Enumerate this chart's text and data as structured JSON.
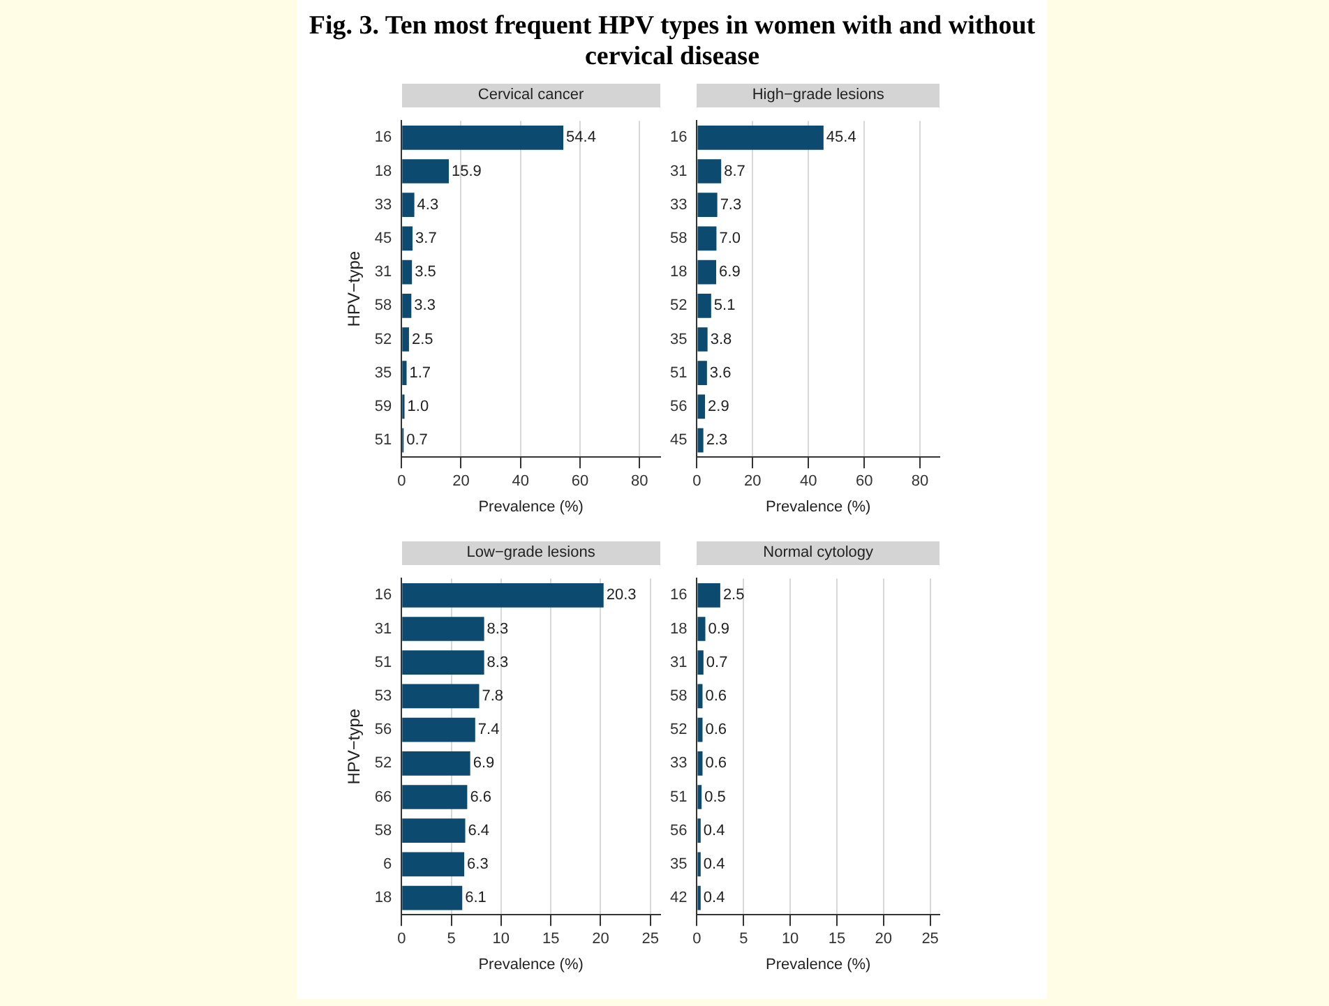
{
  "chart_data": [
    {
      "type": "bar",
      "orientation": "horizontal",
      "title": "Cervical cancer",
      "ylabel": "HPV−type",
      "xlabel": "Prevalence (%)",
      "annotations": [
        "Fig. 3. Ten most frequent HPV types in women with and without cervical disease"
      ],
      "categories": [
        "16",
        "18",
        "33",
        "45",
        "31",
        "58",
        "52",
        "35",
        "59",
        "51"
      ],
      "values": [
        54.4,
        15.9,
        4.3,
        3.7,
        3.5,
        3.3,
        2.5,
        1.7,
        1.0,
        0.7
      ],
      "value_labels": [
        "54.4",
        "15.9",
        "4.3",
        "3.7",
        "3.5",
        "3.3",
        "2.5",
        "1.7",
        "1.0",
        "0.7"
      ],
      "color": "#0d4a70",
      "xlim": [
        0,
        87
      ],
      "xticks": [
        0,
        20,
        40,
        60,
        80
      ],
      "grid": "x",
      "legend": false
    },
    {
      "type": "bar",
      "orientation": "horizontal",
      "title": "High−grade lesions",
      "xlabel": "Prevalence (%)",
      "categories": [
        "16",
        "31",
        "33",
        "58",
        "18",
        "52",
        "35",
        "51",
        "56",
        "45"
      ],
      "values": [
        45.4,
        8.7,
        7.3,
        7.0,
        6.9,
        5.1,
        3.8,
        3.6,
        2.9,
        2.3
      ],
      "value_labels": [
        "45.4",
        "8.7",
        "7.3",
        "7.0",
        "6.9",
        "5.1",
        "3.8",
        "3.6",
        "2.9",
        "2.3"
      ],
      "color": "#0d4a70",
      "xlim": [
        0,
        87
      ],
      "xticks": [
        0,
        20,
        40,
        60,
        80
      ],
      "grid": "x",
      "legend": false
    },
    {
      "type": "bar",
      "orientation": "horizontal",
      "title": "Low−grade lesions",
      "ylabel": "HPV−type",
      "xlabel": "Prevalence (%)",
      "categories": [
        "16",
        "31",
        "51",
        "53",
        "56",
        "52",
        "66",
        "58",
        "6",
        "18"
      ],
      "values": [
        20.3,
        8.3,
        8.3,
        7.8,
        7.4,
        6.9,
        6.6,
        6.4,
        6.3,
        6.1
      ],
      "value_labels": [
        "20.3",
        "8.3",
        "8.3",
        "7.8",
        "7.4",
        "6.9",
        "6.6",
        "6.4",
        "6.3",
        "6.1"
      ],
      "color": "#0d4a70",
      "xlim": [
        0,
        26
      ],
      "xticks": [
        0,
        5,
        10,
        15,
        20,
        25
      ],
      "grid": "x",
      "legend": false
    },
    {
      "type": "bar",
      "orientation": "horizontal",
      "title": "Normal cytology",
      "xlabel": "Prevalence (%)",
      "categories": [
        "16",
        "18",
        "31",
        "58",
        "52",
        "33",
        "51",
        "56",
        "35",
        "42"
      ],
      "values": [
        2.5,
        0.9,
        0.7,
        0.6,
        0.6,
        0.6,
        0.5,
        0.4,
        0.4,
        0.4
      ],
      "value_labels": [
        "2.5",
        "0.9",
        "0.7",
        "0.6",
        "0.6",
        "0.6",
        "0.5",
        "0.4",
        "0.4",
        "0.4"
      ],
      "color": "#0d4a70",
      "xlim": [
        0,
        26
      ],
      "xticks": [
        0,
        5,
        10,
        15,
        20,
        25
      ],
      "grid": "x",
      "legend": false
    }
  ]
}
